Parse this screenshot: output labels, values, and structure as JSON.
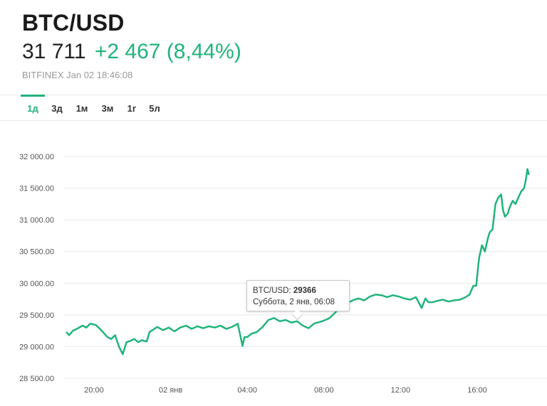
{
  "header": {
    "title": "BTC/USD",
    "price": "31 711",
    "change": "+2 467 (8,44%)",
    "meta": "BITFINEX Jan 02 18:46:08"
  },
  "tabs": [
    {
      "label": "1д",
      "active": true
    },
    {
      "label": "3д",
      "active": false
    },
    {
      "label": "1м",
      "active": false
    },
    {
      "label": "3м",
      "active": false
    },
    {
      "label": "1г",
      "active": false
    },
    {
      "label": "5л",
      "active": false
    }
  ],
  "tooltip": {
    "pair": "BTC/USD:",
    "value": "29366",
    "time": "Суббота, 2 янв, 06:08"
  },
  "colors": {
    "accent": "#21b37b",
    "grid": "#e8e8e8"
  },
  "chart_data": {
    "type": "line",
    "grid": true,
    "ylim": [
      28500,
      32000
    ],
    "y_ticks": [
      {
        "value": 32000,
        "label": "32 000.00"
      },
      {
        "value": 31500,
        "label": "31 500.00"
      },
      {
        "value": 31000,
        "label": "31 000.00"
      },
      {
        "value": 30500,
        "label": "30 500.00"
      },
      {
        "value": 30000,
        "label": "30 000.00"
      },
      {
        "value": 29500,
        "label": "29 500.00"
      },
      {
        "value": 29000,
        "label": "29 000.00"
      },
      {
        "value": 28500,
        "label": "28 500.00"
      }
    ],
    "x_ticks": [
      {
        "hour": 20,
        "label": "20:00"
      },
      {
        "hour": 24,
        "label": "02 янв"
      },
      {
        "hour": 28,
        "label": "04:00"
      },
      {
        "hour": 32,
        "label": "08:00"
      },
      {
        "hour": 36,
        "label": "12:00"
      },
      {
        "hour": 40,
        "label": "16:00"
      }
    ],
    "series": [
      {
        "x": [
          18.55,
          18.7,
          18.9,
          19.1,
          19.4,
          19.6,
          19.8,
          20.1,
          20.4,
          20.7,
          20.9,
          21.1,
          21.3,
          21.5,
          21.7,
          21.9,
          22.1,
          22.3,
          22.5,
          22.75,
          22.9,
          23.1,
          23.3,
          23.6,
          23.9,
          24.2,
          24.5,
          24.8,
          25.1,
          25.4,
          25.7,
          26.0,
          26.3,
          26.6,
          26.9,
          27.2,
          27.5,
          27.75,
          27.85,
          28.0,
          28.2,
          28.5,
          28.8,
          29.1,
          29.4,
          29.7,
          30.0,
          30.3,
          30.6,
          30.9,
          31.2,
          31.5,
          31.8,
          32.0,
          32.3,
          32.6,
          32.9,
          33.2,
          33.5,
          33.8,
          34.1,
          34.4,
          34.7,
          35.0,
          35.3,
          35.6,
          35.9,
          36.2,
          36.5,
          36.8,
          37.1,
          37.3,
          37.45,
          37.7,
          37.9,
          38.2,
          38.5,
          38.8,
          39.1,
          39.4,
          39.6,
          39.8,
          39.95,
          40.0,
          40.1,
          40.25,
          40.4,
          40.55,
          40.65,
          40.8,
          40.95,
          41.1,
          41.25,
          41.35,
          41.45,
          41.6,
          41.7,
          41.85,
          42.0,
          42.15,
          42.3,
          42.45,
          42.55,
          42.62,
          42.7
        ],
        "y": [
          29230,
          29180,
          29250,
          29280,
          29330,
          29300,
          29360,
          29340,
          29250,
          29150,
          29120,
          29180,
          29000,
          28880,
          29070,
          29090,
          29120,
          29070,
          29100,
          29080,
          29230,
          29270,
          29310,
          29260,
          29300,
          29240,
          29300,
          29330,
          29280,
          29320,
          29290,
          29320,
          29300,
          29330,
          29280,
          29310,
          29360,
          29010,
          29150,
          29150,
          29200,
          29230,
          29310,
          29420,
          29450,
          29400,
          29420,
          29380,
          29400,
          29330,
          29290,
          29366,
          29390,
          29410,
          29450,
          29540,
          29620,
          29680,
          29730,
          29760,
          29730,
          29790,
          29820,
          29810,
          29780,
          29810,
          29790,
          29760,
          29740,
          29780,
          29610,
          29760,
          29700,
          29700,
          29720,
          29740,
          29710,
          29730,
          29740,
          29780,
          29820,
          29960,
          29960,
          30120,
          30400,
          30600,
          30500,
          30700,
          30800,
          30850,
          31250,
          31350,
          31400,
          31150,
          31050,
          31100,
          31200,
          31300,
          31250,
          31350,
          31450,
          31500,
          31650,
          31800,
          31711
        ]
      }
    ]
  }
}
